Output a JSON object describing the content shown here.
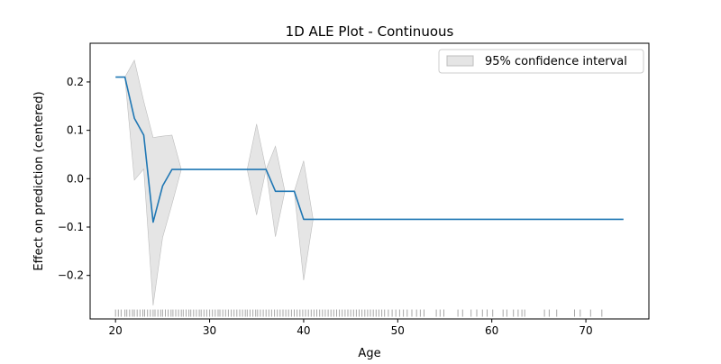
{
  "chart_data": {
    "type": "line",
    "title": "1D ALE Plot - Continuous",
    "xlabel": "Age",
    "ylabel": "Effect on prediction (centered)",
    "xlim": [
      17.3,
      76.7
    ],
    "ylim": [
      -0.29,
      0.28
    ],
    "x_ticks": [
      20,
      30,
      40,
      50,
      60,
      70
    ],
    "y_ticks": [
      0.2,
      0.1,
      0.0,
      -0.1,
      -0.2
    ],
    "x_tick_labels": [
      "20",
      "30",
      "40",
      "50",
      "60",
      "70"
    ],
    "y_tick_labels": [
      "0.2",
      "0.1",
      "0.0",
      "−0.1",
      "−0.2"
    ],
    "grid": false,
    "legend": {
      "placement": "top-right",
      "entries": [
        "95% confidence interval"
      ]
    },
    "series": [
      {
        "type": "line",
        "color": "#1f77b4",
        "x": [
          20,
          21,
          22,
          23,
          24,
          25,
          26,
          27,
          34,
          35,
          36,
          37,
          38,
          39,
          40,
          74
        ],
        "y": [
          0.21,
          0.21,
          0.125,
          0.09,
          -0.09,
          -0.015,
          0.019,
          0.019,
          0.019,
          0.019,
          0.019,
          -0.026,
          -0.026,
          -0.026,
          -0.084,
          -0.084
        ]
      }
    ],
    "confidence_band": {
      "name": "95% confidence interval",
      "color": "#d3d3d3",
      "x": [
        21,
        22,
        23,
        24,
        25,
        26,
        27,
        34,
        35,
        36,
        37,
        38,
        39,
        40,
        41
      ],
      "upper": [
        0.21,
        0.245,
        0.16,
        0.085,
        0.088,
        0.09,
        0.019,
        0.019,
        0.113,
        0.019,
        0.067,
        -0.026,
        -0.026,
        0.037,
        -0.084
      ],
      "lower": [
        0.21,
        -0.003,
        0.02,
        -0.262,
        -0.122,
        -0.053,
        0.019,
        0.019,
        -0.075,
        0.019,
        -0.12,
        -0.026,
        -0.026,
        -0.21,
        -0.084
      ]
    },
    "rug": {
      "y": -0.278,
      "color": "#000000",
      "x": [
        20,
        20.3,
        20.6,
        21,
        21.2,
        21.5,
        21.8,
        22,
        22.3,
        22.6,
        22.9,
        23.1,
        23.4,
        23.7,
        24,
        24.2,
        24.5,
        24.8,
        25,
        25.3,
        25.6,
        25.9,
        26.1,
        26.4,
        26.7,
        27,
        27.2,
        27.5,
        27.8,
        28,
        28.3,
        28.6,
        28.9,
        29.1,
        29.4,
        29.7,
        30,
        30.3,
        30.6,
        30.9,
        31.1,
        31.4,
        31.7,
        32,
        32.3,
        32.6,
        32.9,
        33.2,
        33.5,
        33.8,
        34,
        34.3,
        34.6,
        34.9,
        35.1,
        35.4,
        35.7,
        36,
        36.3,
        36.6,
        36.9,
        37.2,
        37.5,
        37.8,
        38.1,
        38.4,
        38.7,
        39,
        39.3,
        39.6,
        39.9,
        40.2,
        40.5,
        40.8,
        41.1,
        41.4,
        41.7,
        42,
        42.3,
        42.6,
        42.9,
        43.2,
        43.5,
        43.8,
        44.1,
        44.4,
        44.7,
        45,
        45.3,
        45.6,
        45.9,
        46.2,
        46.5,
        46.8,
        47.1,
        47.4,
        47.7,
        48,
        48.3,
        48.6,
        49,
        49.4,
        49.8,
        50.2,
        50.6,
        51,
        51.5,
        52,
        52.4,
        52.8,
        54.1,
        54.5,
        54.9,
        56.4,
        56.9,
        57.8,
        58.4,
        59,
        59.5,
        60.1,
        61.2,
        61.6,
        62.3,
        62.8,
        63.2,
        63.5,
        65.6,
        66.1,
        66.9,
        68.8,
        69.4,
        70.5,
        71.7
      ]
    }
  }
}
